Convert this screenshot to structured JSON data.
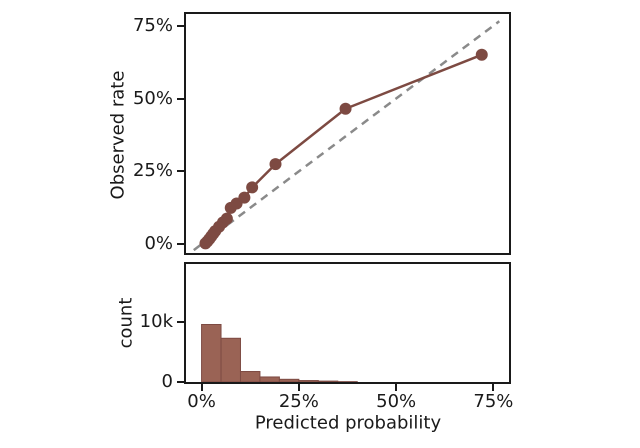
{
  "figure": {
    "background": "#ffffff",
    "axis_color": "#1a1a1a",
    "text_color": "#1a1a1a"
  },
  "chart_data": [
    {
      "type": "line",
      "role": "calibration-curve-panel",
      "title": "",
      "xlabel": "",
      "ylabel": "Observed rate",
      "xlim": [
        -4,
        79
      ],
      "ylim": [
        -3,
        79
      ],
      "grid": false,
      "legend": null,
      "x_ticks": {
        "values": [
          0,
          25,
          50,
          75
        ],
        "labels": [
          "0%",
          "25%",
          "50%",
          "75%"
        ]
      },
      "y_ticks": {
        "values": [
          0,
          25,
          50,
          75
        ],
        "labels": [
          "0%",
          "25%",
          "50%",
          "75%"
        ]
      },
      "series": [
        {
          "name": "perfect-calibration-reference",
          "type": "dashed-line",
          "color": "#8a8a8a",
          "line_width": 2.5,
          "dash": "8 6",
          "points": [
            [
              -2,
              -2
            ],
            [
              76.5,
              76.5
            ]
          ]
        },
        {
          "name": "calibration-curve",
          "type": "line-with-markers",
          "color": "#7d4a42",
          "line_width": 2.5,
          "marker_radius": 6,
          "points": [
            [
              1,
              0.3
            ],
            [
              1.5,
              1
            ],
            [
              2,
              1.8
            ],
            [
              2.5,
              2.7
            ],
            [
              3,
              3.6
            ],
            [
              3.5,
              4.5
            ],
            [
              4.5,
              6
            ],
            [
              5.5,
              7.5
            ],
            [
              6.5,
              8.8
            ],
            [
              7.5,
              12.5
            ],
            [
              9,
              14
            ],
            [
              11,
              16
            ],
            [
              13,
              19.5
            ],
            [
              19,
              27.5
            ],
            [
              37,
              46.5
            ],
            [
              72,
              65
            ]
          ]
        }
      ]
    },
    {
      "type": "bar",
      "role": "prediction-histogram-panel",
      "title": "",
      "xlabel": "Predicted probability",
      "ylabel": "count",
      "xlim": [
        -4,
        79
      ],
      "ylim": [
        0,
        19700
      ],
      "grid": false,
      "legend": null,
      "x_ticks": {
        "values": [
          0,
          25,
          50,
          75
        ],
        "labels": [
          "0%",
          "25%",
          "50%",
          "75%"
        ]
      },
      "y_ticks": {
        "values": [
          0,
          10000
        ],
        "labels": [
          "0",
          "10k"
        ]
      },
      "bar_color": "#9a6355",
      "bar_edge_color": "#7d4a42",
      "bins": [
        {
          "start": 0,
          "end": 5,
          "count": 9600
        },
        {
          "start": 5,
          "end": 10,
          "count": 7300
        },
        {
          "start": 10,
          "end": 15,
          "count": 1750
        },
        {
          "start": 15,
          "end": 20,
          "count": 840
        },
        {
          "start": 20,
          "end": 25,
          "count": 450
        },
        {
          "start": 25,
          "end": 30,
          "count": 240
        },
        {
          "start": 30,
          "end": 35,
          "count": 150
        },
        {
          "start": 35,
          "end": 40,
          "count": 60
        }
      ]
    }
  ]
}
